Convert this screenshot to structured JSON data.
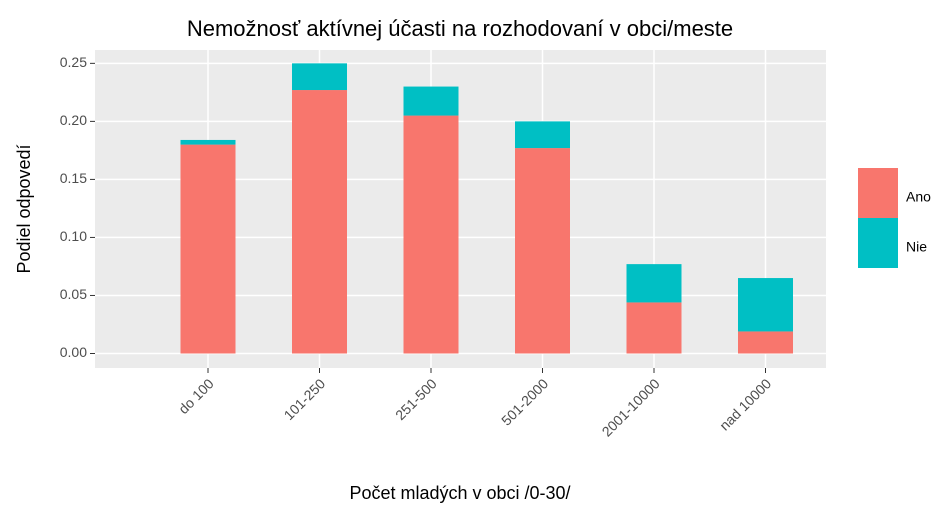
{
  "chart_data": {
    "type": "bar",
    "stacked": true,
    "title": "Nemožnosť aktívnej účasti na rozhodovaní v obci/meste",
    "x_label": "Počet mladých v obci /0-30/",
    "y_label": "Podiel odpovedí",
    "categories": [
      "do 100",
      "101-250",
      "251-500",
      "501-2000",
      "2001-10000",
      "nad 10000"
    ],
    "series": [
      {
        "name": "Ano",
        "color": "#f8766d",
        "values": [
          0.18,
          0.227,
          0.205,
          0.177,
          0.044,
          0.019
        ]
      },
      {
        "name": "Nie",
        "color": "#00bfc4",
        "values": [
          0.004,
          0.023,
          0.025,
          0.023,
          0.033,
          0.046
        ]
      }
    ],
    "ylim": [
      -0.0125,
      0.2615
    ],
    "yticks": [
      {
        "value": 0,
        "label": "0.00"
      },
      {
        "value": 0.05,
        "label": "0.05"
      },
      {
        "value": 0.1,
        "label": "0.10"
      },
      {
        "value": 0.15,
        "label": "0.15"
      },
      {
        "value": 0.2,
        "label": "0.20"
      },
      {
        "value": 0.25,
        "label": "0.25"
      }
    ],
    "grid": true,
    "legend": "right"
  }
}
